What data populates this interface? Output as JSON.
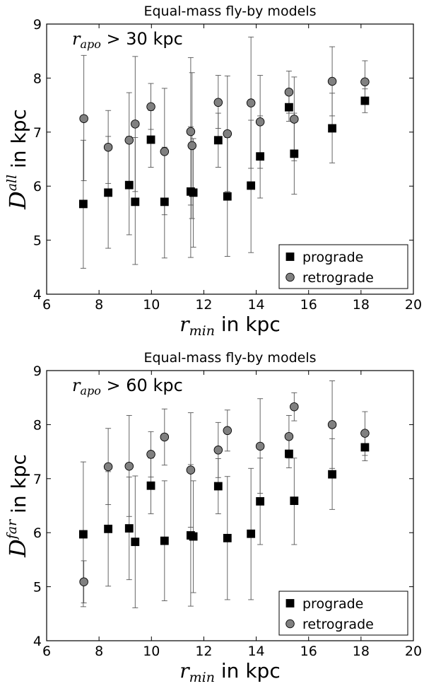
{
  "chart_data": [
    {
      "type": "scatter",
      "title": "Equal-mass fly-by models",
      "annotation": {
        "var": "r",
        "sub": "apo",
        "text": " > 30 kpc"
      },
      "xlabel": {
        "var": "r",
        "sub": "min",
        "text": " in kpc"
      },
      "ylabel": {
        "var": "D",
        "sup": "all",
        "text": " in kpc"
      },
      "xlim": [
        6,
        20
      ],
      "ylim": [
        4,
        9
      ],
      "xticks": [
        "6",
        "8",
        "10",
        "12",
        "14",
        "16",
        "18",
        "20"
      ],
      "yticks": [
        "4",
        "5",
        "6",
        "7",
        "8",
        "9"
      ],
      "legend": {
        "position": "bottom-right",
        "entries": [
          "prograde",
          "retrograde"
        ]
      },
      "grid": false,
      "series": [
        {
          "name": "prograde",
          "marker": "square",
          "color": "#000000",
          "points": [
            {
              "x": 7.4,
              "y": 5.67,
              "lo": 4.48,
              "hi": 6.85
            },
            {
              "x": 8.35,
              "y": 5.88,
              "lo": 4.85,
              "hi": 6.92
            },
            {
              "x": 9.15,
              "y": 6.02,
              "lo": 5.1,
              "hi": 6.92
            },
            {
              "x": 9.38,
              "y": 5.71,
              "lo": 4.55,
              "hi": 6.9
            },
            {
              "x": 9.98,
              "y": 6.86,
              "lo": 6.35,
              "hi": 7.4
            },
            {
              "x": 10.5,
              "y": 5.71,
              "lo": 4.67,
              "hi": 6.72
            },
            {
              "x": 11.5,
              "y": 5.9,
              "lo": 4.68,
              "hi": 7.1
            },
            {
              "x": 11.6,
              "y": 5.88,
              "lo": 4.87,
              "hi": 6.88
            },
            {
              "x": 12.55,
              "y": 6.85,
              "lo": 6.35,
              "hi": 7.35
            },
            {
              "x": 12.9,
              "y": 5.81,
              "lo": 4.7,
              "hi": 6.9
            },
            {
              "x": 13.8,
              "y": 6.01,
              "lo": 4.77,
              "hi": 7.22
            },
            {
              "x": 14.15,
              "y": 6.55,
              "lo": 5.78,
              "hi": 7.3
            },
            {
              "x": 15.25,
              "y": 7.46,
              "lo": 7.2,
              "hi": 7.72
            },
            {
              "x": 15.45,
              "y": 6.6,
              "lo": 5.85,
              "hi": 7.35
            },
            {
              "x": 16.9,
              "y": 7.07,
              "lo": 6.43,
              "hi": 7.72
            },
            {
              "x": 18.15,
              "y": 7.58,
              "lo": 7.36,
              "hi": 7.8
            }
          ]
        },
        {
          "name": "retrograde",
          "marker": "circle",
          "color": "#808080",
          "points": [
            {
              "x": 7.42,
              "y": 7.25,
              "lo": 6.1,
              "hi": 8.42
            },
            {
              "x": 8.35,
              "y": 6.72,
              "lo": 6.05,
              "hi": 7.4
            },
            {
              "x": 9.15,
              "y": 6.85,
              "lo": 5.98,
              "hi": 7.73
            },
            {
              "x": 9.38,
              "y": 7.15,
              "lo": 5.9,
              "hi": 8.4
            },
            {
              "x": 9.98,
              "y": 7.47,
              "lo": 7.05,
              "hi": 7.9
            },
            {
              "x": 10.5,
              "y": 6.64,
              "lo": 5.47,
              "hi": 7.81
            },
            {
              "x": 11.5,
              "y": 7.01,
              "lo": 5.65,
              "hi": 8.38
            },
            {
              "x": 11.55,
              "y": 6.75,
              "lo": 5.4,
              "hi": 8.1
            },
            {
              "x": 12.55,
              "y": 7.55,
              "lo": 7.07,
              "hi": 8.05
            },
            {
              "x": 12.9,
              "y": 6.97,
              "lo": 5.9,
              "hi": 8.04
            },
            {
              "x": 13.8,
              "y": 7.54,
              "lo": 6.33,
              "hi": 8.76
            },
            {
              "x": 14.15,
              "y": 7.19,
              "lo": 6.33,
              "hi": 8.05
            },
            {
              "x": 15.25,
              "y": 7.74,
              "lo": 7.35,
              "hi": 8.13
            },
            {
              "x": 15.45,
              "y": 7.24,
              "lo": 6.47,
              "hi": 8.02
            },
            {
              "x": 16.9,
              "y": 7.94,
              "lo": 7.3,
              "hi": 8.58
            },
            {
              "x": 18.15,
              "y": 7.93,
              "lo": 7.55,
              "hi": 8.32
            }
          ]
        }
      ]
    },
    {
      "type": "scatter",
      "title": "Equal-mass fly-by models",
      "annotation": {
        "var": "r",
        "sub": "apo",
        "text": " > 60 kpc"
      },
      "xlabel": {
        "var": "r",
        "sub": "min",
        "text": " in kpc"
      },
      "ylabel": {
        "var": "D",
        "sup": "far",
        "text": " in kpc"
      },
      "xlim": [
        6,
        20
      ],
      "ylim": [
        4,
        9
      ],
      "xticks": [
        "6",
        "8",
        "10",
        "12",
        "14",
        "16",
        "18",
        "20"
      ],
      "yticks": [
        "4",
        "5",
        "6",
        "7",
        "8",
        "9"
      ],
      "legend": {
        "position": "bottom-right",
        "entries": [
          "prograde",
          "retrograde"
        ]
      },
      "grid": false,
      "series": [
        {
          "name": "prograde",
          "marker": "square",
          "color": "#000000",
          "points": [
            {
              "x": 7.4,
              "y": 5.97,
              "lo": 4.63,
              "hi": 7.31
            },
            {
              "x": 8.35,
              "y": 6.07,
              "lo": 5.01,
              "hi": 7.13
            },
            {
              "x": 9.15,
              "y": 6.08,
              "lo": 5.13,
              "hi": 7.03
            },
            {
              "x": 9.38,
              "y": 5.83,
              "lo": 4.61,
              "hi": 7.05
            },
            {
              "x": 9.98,
              "y": 6.87,
              "lo": 6.35,
              "hi": 7.38
            },
            {
              "x": 10.5,
              "y": 5.85,
              "lo": 4.74,
              "hi": 6.96
            },
            {
              "x": 11.5,
              "y": 5.95,
              "lo": 4.64,
              "hi": 7.26
            },
            {
              "x": 11.6,
              "y": 5.93,
              "lo": 4.89,
              "hi": 6.96
            },
            {
              "x": 12.55,
              "y": 6.86,
              "lo": 6.35,
              "hi": 7.37
            },
            {
              "x": 12.9,
              "y": 5.9,
              "lo": 4.76,
              "hi": 7.04
            },
            {
              "x": 13.8,
              "y": 5.98,
              "lo": 4.76,
              "hi": 7.19
            },
            {
              "x": 14.15,
              "y": 6.58,
              "lo": 5.78,
              "hi": 7.38
            },
            {
              "x": 15.25,
              "y": 7.46,
              "lo": 7.2,
              "hi": 7.72
            },
            {
              "x": 15.45,
              "y": 6.59,
              "lo": 5.78,
              "hi": 7.38
            },
            {
              "x": 16.9,
              "y": 7.08,
              "lo": 6.43,
              "hi": 7.74
            },
            {
              "x": 18.15,
              "y": 7.58,
              "lo": 7.33,
              "hi": 7.83
            }
          ]
        },
        {
          "name": "retrograde",
          "marker": "circle",
          "color": "#808080",
          "points": [
            {
              "x": 7.42,
              "y": 5.09,
              "lo": 4.7,
              "hi": 5.48
            },
            {
              "x": 8.35,
              "y": 7.22,
              "lo": 6.52,
              "hi": 7.93
            },
            {
              "x": 9.15,
              "y": 7.23,
              "lo": 6.3,
              "hi": 8.17
            },
            {
              "x": 9.98,
              "y": 7.45,
              "lo": 7.03,
              "hi": 7.87
            },
            {
              "x": 10.5,
              "y": 7.77,
              "lo": 7.25,
              "hi": 8.29
            },
            {
              "x": 11.5,
              "y": 7.16,
              "lo": 6.1,
              "hi": 8.22
            },
            {
              "x": 12.55,
              "y": 7.53,
              "lo": 7.02,
              "hi": 8.04
            },
            {
              "x": 12.9,
              "y": 7.89,
              "lo": 7.51,
              "hi": 8.27
            },
            {
              "x": 14.15,
              "y": 7.6,
              "lo": 6.73,
              "hi": 8.48
            },
            {
              "x": 15.25,
              "y": 7.78,
              "lo": 7.38,
              "hi": 8.17
            },
            {
              "x": 15.45,
              "y": 8.33,
              "lo": 8.07,
              "hi": 8.59
            },
            {
              "x": 16.9,
              "y": 8.0,
              "lo": 7.19,
              "hi": 8.81
            },
            {
              "x": 18.15,
              "y": 7.84,
              "lo": 7.43,
              "hi": 8.24
            }
          ]
        }
      ]
    }
  ]
}
